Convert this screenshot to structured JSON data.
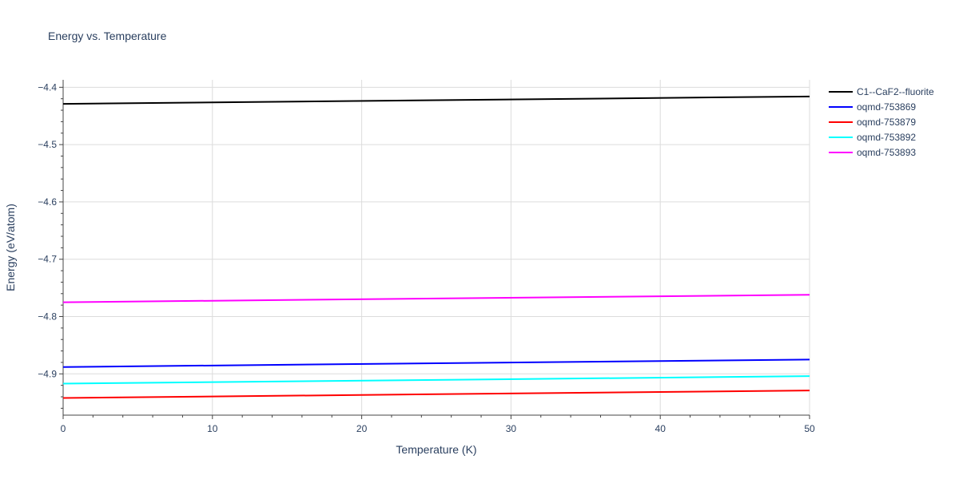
{
  "chart_data": {
    "type": "line",
    "title": "Energy vs. Temperature",
    "xlabel": "Temperature (K)",
    "ylabel": "Energy (eV/atom)",
    "xlim": [
      0,
      50
    ],
    "ylim": [
      -4.972,
      -4.387
    ],
    "grid": true,
    "legend_position": "right",
    "x_ticks": [
      0,
      10,
      20,
      30,
      40,
      50
    ],
    "x_tick_labels": [
      "0",
      "10",
      "20",
      "30",
      "40",
      "50"
    ],
    "y_ticks": [
      -4.4,
      -4.5,
      -4.6,
      -4.7,
      -4.8,
      -4.9
    ],
    "y_tick_labels": [
      "−4.4",
      "−4.5",
      "−4.6",
      "−4.7",
      "−4.8",
      "−4.9"
    ],
    "x": [
      0,
      50
    ],
    "series": [
      {
        "name": "C1--CaF2--fluorite",
        "color": "#000000",
        "values": [
          -4.429,
          -4.416
        ]
      },
      {
        "name": "oqmd-753869",
        "color": "#0000ff",
        "values": [
          -4.888,
          -4.875
        ]
      },
      {
        "name": "oqmd-753879",
        "color": "#ff0000",
        "values": [
          -4.942,
          -4.929
        ]
      },
      {
        "name": "oqmd-753892",
        "color": "#00ffff",
        "values": [
          -4.917,
          -4.904
        ]
      },
      {
        "name": "oqmd-753893",
        "color": "#ff00ff",
        "values": [
          -4.775,
          -4.762
        ]
      }
    ]
  }
}
